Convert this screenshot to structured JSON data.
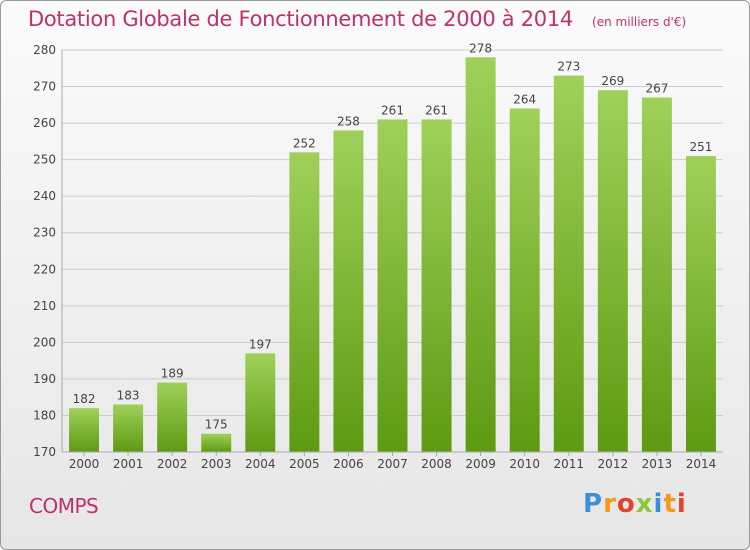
{
  "header": {
    "title": "Dotation Globale de Fonctionnement de 2000 à 2014",
    "unit": "(en milliers d'€)"
  },
  "footer": {
    "commune": "COMPS",
    "logo_text": "Proxiti"
  },
  "colors": {
    "title": "#c0306a",
    "bar_top": "#9fd15a",
    "bar_bottom": "#5e9a12",
    "grid": "#cccccc"
  },
  "chart_data": {
    "type": "bar",
    "title": "Dotation Globale de Fonctionnement de 2000 à 2014",
    "xlabel": "",
    "ylabel": "",
    "categories": [
      "2000",
      "2001",
      "2002",
      "2003",
      "2004",
      "2005",
      "2006",
      "2007",
      "2008",
      "2009",
      "2010",
      "2011",
      "2012",
      "2013",
      "2014"
    ],
    "values": [
      182,
      183,
      189,
      175,
      197,
      252,
      258,
      261,
      261,
      278,
      264,
      273,
      269,
      267,
      251
    ],
    "ylim": [
      170,
      280
    ],
    "yticks": [
      170,
      180,
      190,
      200,
      210,
      220,
      230,
      240,
      250,
      260,
      270,
      280
    ],
    "grid": true,
    "legend": "none"
  }
}
